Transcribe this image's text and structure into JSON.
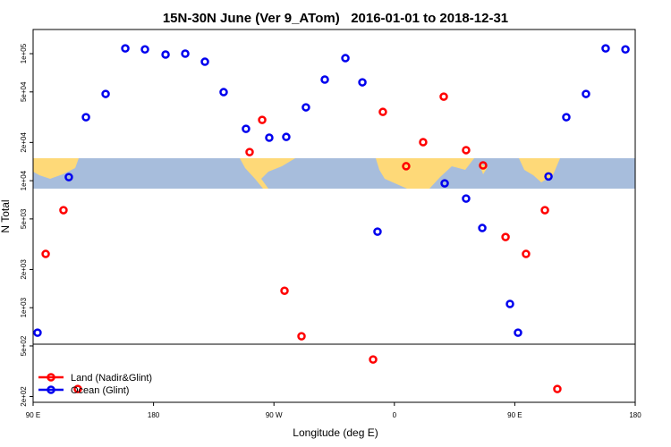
{
  "chart_data": {
    "type": "scatter",
    "title": "15N-30N June (Ver 9_ATom)   2016-01-01 to 2018-12-31",
    "x_label": "Longitude (deg E)",
    "y_label": "N Total",
    "xlim": [
      90,
      540
    ],
    "xticks": [
      {
        "value": 90,
        "label": "90 E"
      },
      {
        "value": 180,
        "label": "180"
      },
      {
        "value": 270,
        "label": "90 W"
      },
      {
        "value": 360,
        "label": "0"
      },
      {
        "value": 450,
        "label": "90 E"
      },
      {
        "value": 540,
        "label": "180"
      }
    ],
    "ylim": [
      180,
      155000
    ],
    "y_log": true,
    "yticks": [
      {
        "value": 200,
        "label": "2e+02"
      },
      {
        "value": 500,
        "label": "5e+02"
      },
      {
        "value": 1000,
        "label": "1e+03"
      },
      {
        "value": 2000,
        "label": "2e+03"
      },
      {
        "value": 5000,
        "label": "5e+03"
      },
      {
        "value": 10000,
        "label": "1e+04"
      },
      {
        "value": 20000,
        "label": "2e+04"
      },
      {
        "value": 50000,
        "label": "5e+04"
      },
      {
        "value": 100000,
        "label": "1e+05"
      }
    ],
    "legend": "lower left",
    "series": [
      {
        "name": "Land (Nadir&Glint)",
        "color": "#ff0000",
        "x": [
          99.4,
          112.7,
          123.4,
          251.8,
          261.2,
          277.9,
          290.6,
          344.1,
          351.4,
          368.8,
          381.5,
          396.9,
          413.6,
          426.3,
          443.1,
          458.4,
          472.5,
          481.8
        ],
        "values": [
          2650,
          5860,
          229,
          16800,
          30100,
          1360,
          596,
          391,
          34800,
          13000,
          20100,
          45900,
          17400,
          13200,
          3600,
          2650,
          5860,
          229
        ]
      },
      {
        "name": "Ocean (Glint)",
        "color": "#0000ee",
        "x": [
          93.3,
          116.7,
          129.5,
          144.2,
          158.9,
          173.6,
          189.0,
          203.7,
          218.4,
          232.4,
          249.1,
          266.5,
          279.2,
          293.9,
          308.0,
          323.4,
          336.1,
          347.4,
          397.6,
          413.6,
          425.7,
          446.4,
          452.4,
          475.2,
          488.5,
          503.2,
          517.9,
          532.7
        ],
        "values": [
          636,
          10670,
          31600,
          48200,
          110000,
          108000,
          98400,
          100000,
          86400,
          49800,
          25600,
          21800,
          22100,
          37800,
          62500,
          92200,
          59500,
          3970,
          9530,
          7230,
          4240,
          1070,
          636,
          10800,
          31600,
          48200,
          110000,
          108000
        ]
      }
    ]
  }
}
